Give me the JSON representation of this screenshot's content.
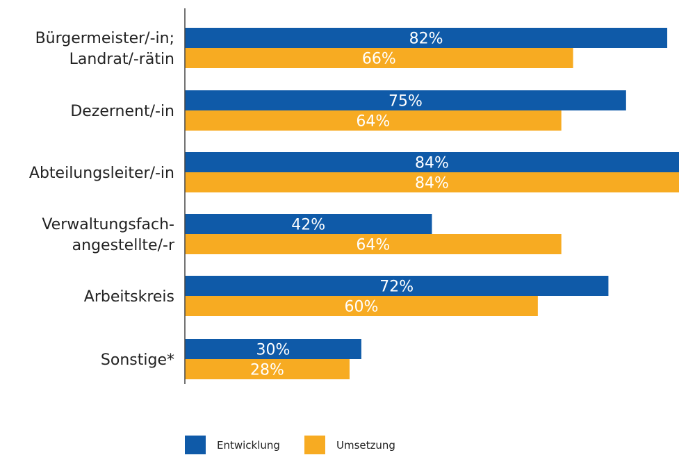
{
  "chart_data": {
    "type": "bar",
    "orientation": "horizontal",
    "categories": [
      [
        "Bürgermeister/-in;",
        "Landrat/-rätin"
      ],
      [
        "Dezernent/-in"
      ],
      [
        "Abteilungsleiter/-in"
      ],
      [
        "Verwaltungsfach-",
        "angestellte/-r"
      ],
      [
        "Arbeitskreis"
      ],
      [
        "Sonstige*"
      ]
    ],
    "series": [
      {
        "name": "Entwicklung",
        "color": "#0f5aa8",
        "values": [
          82,
          75,
          84,
          42,
          72,
          30
        ],
        "labels": [
          "82%",
          "75%",
          "84%",
          "42%",
          "72%",
          "30%"
        ]
      },
      {
        "name": "Umsetzung",
        "color": "#f7ab22",
        "values": [
          66,
          64,
          84,
          64,
          60,
          28
        ],
        "labels": [
          "66%",
          "64%",
          "84%",
          "64%",
          "60%",
          "28%"
        ]
      }
    ],
    "xlim": [
      0,
      84
    ],
    "grid": false,
    "legend_position": "bottom"
  }
}
